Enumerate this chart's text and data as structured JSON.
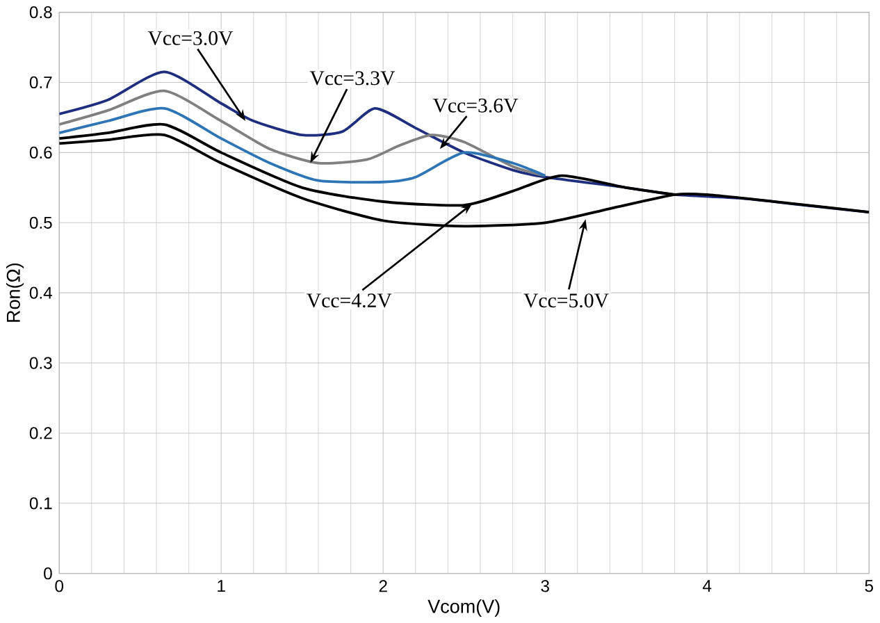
{
  "chart_data": {
    "type": "line",
    "xlabel": "Vcom(V)",
    "ylabel": "Ron(Ω)",
    "xlim": [
      0,
      5
    ],
    "ylim": [
      0,
      0.8
    ],
    "xticks": [
      0,
      1,
      2,
      3,
      4,
      5
    ],
    "yticks": [
      0,
      0.1,
      0.2,
      0.3,
      0.4,
      0.5,
      0.6,
      0.7,
      0.8
    ],
    "grid": true,
    "marker": "none",
    "line_style": "solid",
    "series": [
      {
        "color": "#1f2f7f",
        "x": [
          0,
          0.3,
          0.65,
          1.0,
          1.2,
          1.5,
          1.75,
          1.95,
          2.2,
          2.5,
          2.8,
          3.0,
          3.5,
          3.8,
          4.2,
          4.6,
          5.0
        ],
        "values": [
          0.655,
          0.675,
          0.715,
          0.67,
          0.645,
          0.625,
          0.63,
          0.663,
          0.635,
          0.6,
          0.575,
          0.565,
          0.55,
          0.54,
          0.535,
          0.525,
          0.515
        ]
      },
      {
        "color": "#808080",
        "x": [
          0,
          0.3,
          0.65,
          1.0,
          1.3,
          1.6,
          1.9,
          2.1,
          2.3,
          2.5,
          2.8,
          3.0
        ],
        "values": [
          0.64,
          0.66,
          0.688,
          0.645,
          0.605,
          0.585,
          0.59,
          0.61,
          0.625,
          0.615,
          0.58,
          0.567
        ]
      },
      {
        "color": "#2e75b6",
        "x": [
          0,
          0.3,
          0.65,
          1.0,
          1.3,
          1.6,
          2.0,
          2.2,
          2.5,
          2.8,
          3.0
        ],
        "values": [
          0.628,
          0.645,
          0.663,
          0.62,
          0.585,
          0.56,
          0.558,
          0.565,
          0.6,
          0.585,
          0.567
        ]
      },
      {
        "color": "#000000",
        "x": [
          0,
          0.3,
          0.65,
          1.0,
          1.5,
          2.0,
          2.5,
          2.8,
          3.1,
          3.5,
          3.8
        ],
        "values": [
          0.62,
          0.628,
          0.64,
          0.6,
          0.55,
          0.53,
          0.525,
          0.545,
          0.567,
          0.55,
          0.54
        ]
      },
      {
        "color": "#000000",
        "x": [
          0,
          0.3,
          0.65,
          1.0,
          1.5,
          2.0,
          2.5,
          3.0,
          3.4,
          3.8,
          4.0,
          4.5,
          5.0
        ],
        "values": [
          0.613,
          0.618,
          0.625,
          0.585,
          0.535,
          0.503,
          0.495,
          0.5,
          0.52,
          0.54,
          0.54,
          0.528,
          0.515
        ]
      }
    ],
    "annotations": [
      {
        "text": "Vcc=3.0V",
        "x": 1.15,
        "y": 0.645
      },
      {
        "text": "Vcc=3.3V",
        "x": 1.55,
        "y": 0.585
      },
      {
        "text": "Vcc=3.6V",
        "x": 2.35,
        "y": 0.605
      },
      {
        "text": "Vcc=4.2V",
        "x": 2.55,
        "y": 0.527
      },
      {
        "text": "Vcc=5.0V",
        "x": 3.25,
        "y": 0.505
      }
    ]
  }
}
